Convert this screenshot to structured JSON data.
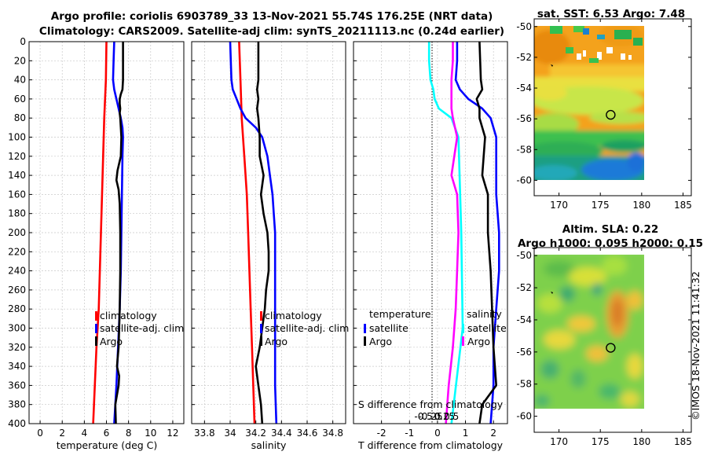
{
  "figure": {
    "title_line1": "Argo profile: coriolis 6903789_33 13-Nov-2021 55.74S 176.25E (NRT data)",
    "title_line2": "Climatology: CARS2009. Satellite-adj clim: synTS_20211113.nc (0.24d earlier)",
    "credit": "©IMOS 18-Nov-2021 11:41:32"
  },
  "colors": {
    "climatology": "#ff0000",
    "satellite_adj": "#0000ff",
    "argo": "#000000",
    "t_satellite": "#0000ff",
    "s_satellite": "#00ffff",
    "s_argo": "#ff00ff",
    "t_argo": "#000000"
  },
  "chart_data": [
    {
      "id": "temperature",
      "type": "line",
      "xlabel": "temperature (deg C)",
      "ylabel": "",
      "xlim": [
        -1,
        13
      ],
      "ylim": [
        400,
        0
      ],
      "xticks": [
        0,
        2,
        4,
        6,
        8,
        10,
        12
      ],
      "xtick_labels": [
        "0",
        "2",
        "4",
        "6",
        "8",
        "10",
        "12"
      ],
      "yticks": [
        0,
        20,
        40,
        60,
        80,
        100,
        120,
        140,
        160,
        180,
        200,
        220,
        240,
        260,
        280,
        300,
        320,
        340,
        360,
        380,
        400
      ],
      "ytick_labels": [
        "0",
        "20",
        "40",
        "60",
        "80",
        "100",
        "120",
        "140",
        "160",
        "180",
        "200",
        "220",
        "240",
        "260",
        "280",
        "300",
        "320",
        "340",
        "360",
        "380",
        "400"
      ],
      "grid": true,
      "legend": {
        "position": "lower-right",
        "entries": [
          "climatology",
          "satellite-adj. clim",
          "Argo"
        ]
      },
      "series": [
        {
          "name": "climatology",
          "color": "climatology",
          "depth": [
            0,
            40,
            80,
            120,
            160,
            200,
            240,
            280,
            320,
            360,
            400
          ],
          "values": [
            6.0,
            5.95,
            5.8,
            5.7,
            5.6,
            5.5,
            5.4,
            5.3,
            5.1,
            4.95,
            4.8
          ]
        },
        {
          "name": "satellite-adj. clim",
          "color": "satellite_adj",
          "depth": [
            0,
            20,
            40,
            50,
            60,
            70,
            80,
            90,
            100,
            120,
            160,
            200,
            240,
            280,
            320,
            360,
            400
          ],
          "values": [
            6.7,
            6.65,
            6.6,
            6.7,
            6.9,
            7.1,
            7.3,
            7.45,
            7.5,
            7.45,
            7.4,
            7.35,
            7.3,
            7.2,
            7.05,
            6.9,
            6.7
          ]
        },
        {
          "name": "Argo",
          "color": "argo",
          "depth": [
            0,
            40,
            50,
            55,
            60,
            65,
            70,
            75,
            80,
            90,
            100,
            120,
            135,
            145,
            155,
            170,
            200,
            240,
            280,
            320,
            340,
            350,
            360,
            380,
            400
          ],
          "values": [
            7.5,
            7.5,
            7.45,
            7.3,
            7.2,
            7.2,
            7.25,
            7.2,
            7.25,
            7.3,
            7.35,
            7.3,
            7.0,
            6.9,
            7.1,
            7.2,
            7.25,
            7.25,
            7.2,
            7.1,
            6.95,
            7.15,
            7.1,
            6.8,
            6.85
          ]
        }
      ]
    },
    {
      "id": "salinity",
      "type": "line",
      "xlabel": "salinity",
      "ylabel": "",
      "xlim": [
        33.7,
        34.9
      ],
      "ylim": [
        400,
        0
      ],
      "xticks": [
        33.8,
        34.0,
        34.2,
        34.4,
        34.6,
        34.8
      ],
      "xtick_labels": [
        "33.8",
        "34",
        "34.2",
        "34.4",
        "34.6",
        "34.8"
      ],
      "grid": true,
      "legend": {
        "position": "lower-right",
        "entries": [
          "climatology",
          "satellite-adj. clim",
          "Argo"
        ]
      },
      "series": [
        {
          "name": "climatology",
          "color": "climatology",
          "depth": [
            0,
            40,
            80,
            120,
            160,
            200,
            240,
            280,
            320,
            360,
            400
          ],
          "values": [
            34.07,
            34.08,
            34.09,
            34.11,
            34.13,
            34.14,
            34.15,
            34.16,
            34.17,
            34.18,
            34.19
          ]
        },
        {
          "name": "satellite-adj. clim",
          "color": "satellite_adj",
          "depth": [
            0,
            40,
            50,
            60,
            70,
            80,
            90,
            100,
            120,
            140,
            160,
            180,
            200,
            240,
            280,
            320,
            360,
            400
          ],
          "values": [
            34.0,
            34.01,
            34.02,
            34.05,
            34.08,
            34.12,
            34.2,
            34.25,
            34.29,
            34.31,
            34.33,
            34.34,
            34.35,
            34.35,
            34.35,
            34.35,
            34.35,
            34.36
          ]
        },
        {
          "name": "Argo",
          "color": "argo",
          "depth": [
            0,
            40,
            50,
            60,
            70,
            80,
            100,
            120,
            140,
            160,
            180,
            200,
            220,
            240,
            260,
            280,
            300,
            320,
            340,
            360,
            380,
            400
          ],
          "values": [
            34.22,
            34.22,
            34.21,
            34.22,
            34.21,
            34.22,
            34.23,
            34.23,
            34.26,
            34.24,
            34.26,
            34.29,
            34.3,
            34.3,
            34.28,
            34.27,
            34.25,
            34.23,
            34.2,
            34.22,
            34.24,
            34.25
          ]
        }
      ]
    },
    {
      "id": "differences",
      "type": "line",
      "xlabel": "T difference from climatology",
      "xlabel_top": "S difference from climatology",
      "xlim": [
        -3,
        2.5
      ],
      "ylim": [
        400,
        0
      ],
      "xticks": [
        -2,
        -1,
        0,
        1,
        2
      ],
      "xtick_labels": [
        "-2",
        "-1",
        "0",
        "1",
        "2"
      ],
      "s_ticks": [
        -0.5,
        -0.25,
        0,
        0.25,
        0.5
      ],
      "s_tick_labels": [
        "-0.5",
        "-0.25",
        "0",
        "0.25",
        "0.5"
      ],
      "grid": true,
      "legend_left": {
        "heading": "temperature",
        "entries": [
          "satellite",
          "Argo"
        ]
      },
      "legend_right": {
        "heading": "salinity",
        "entries": [
          "satellite",
          "Argo"
        ]
      },
      "series": [
        {
          "name": "T satellite",
          "color": "t_satellite",
          "depth": [
            0,
            20,
            40,
            50,
            60,
            70,
            80,
            100,
            160,
            200,
            240,
            280,
            320,
            360,
            400
          ],
          "values": [
            0.7,
            0.7,
            0.65,
            0.8,
            1.1,
            1.6,
            1.9,
            2.1,
            2.1,
            2.2,
            2.2,
            2.1,
            2.0,
            2.0,
            1.9
          ]
        },
        {
          "name": "T Argo",
          "color": "t_argo",
          "depth": [
            0,
            40,
            50,
            60,
            70,
            80,
            100,
            140,
            160,
            200,
            240,
            280,
            320,
            360,
            380,
            400
          ],
          "values": [
            1.5,
            1.55,
            1.6,
            1.4,
            1.5,
            1.5,
            1.7,
            1.6,
            1.8,
            1.8,
            1.9,
            1.95,
            2.0,
            2.1,
            1.6,
            1.5
          ]
        },
        {
          "name": "S satellite",
          "color": "s_satellite",
          "depth": [
            0,
            20,
            40,
            50,
            60,
            70,
            80,
            100,
            200,
            300,
            400
          ],
          "values": [
            -0.3,
            -0.3,
            -0.25,
            -0.15,
            -0.1,
            0.05,
            0.5,
            0.75,
            0.85,
            0.9,
            0.5
          ]
        },
        {
          "name": "S Argo",
          "color": "s_argo",
          "depth": [
            0,
            20,
            40,
            60,
            70,
            80,
            100,
            140,
            160,
            200,
            240,
            280,
            300,
            320,
            360,
            400
          ],
          "values": [
            0.55,
            0.55,
            0.5,
            0.5,
            0.5,
            0.55,
            0.7,
            0.5,
            0.7,
            0.75,
            0.7,
            0.65,
            0.6,
            0.55,
            0.4,
            0.3
          ]
        }
      ]
    },
    {
      "id": "sst_map",
      "type": "heatmap",
      "title": "sat. SST: 6.53 Argo: 7.48",
      "xlim": [
        167,
        186
      ],
      "ylim": [
        -61,
        -49.5
      ],
      "xticks": [
        170,
        175,
        180,
        185
      ],
      "xtick_labels": [
        "170",
        "175",
        "180",
        "185"
      ],
      "yticks": [
        -50,
        -52,
        -54,
        -56,
        -58,
        -60
      ],
      "ytick_labels": [
        "-50",
        "-52",
        "-54",
        "-56",
        "-58",
        "-60"
      ],
      "data_extent": {
        "lon": [
          167.5,
          180
        ],
        "lat": [
          -60,
          -50
        ]
      },
      "argo_position": {
        "lon": 176.25,
        "lat": -55.74
      }
    },
    {
      "id": "sla_map",
      "type": "heatmap",
      "title_line1": "Altim. SLA: 0.22",
      "title_line2": "Argo h1000: 0.095 h2000: 0.15",
      "xlim": [
        167,
        186
      ],
      "ylim": [
        -61,
        -49.5
      ],
      "xticks": [
        170,
        175,
        180,
        185
      ],
      "xtick_labels": [
        "170",
        "175",
        "180",
        "185"
      ],
      "yticks": [
        -50,
        -52,
        -54,
        -56,
        -58,
        -60
      ],
      "ytick_labels": [
        "-50",
        "-52",
        "-54",
        "-56",
        "-58",
        "-60"
      ],
      "data_extent": {
        "lon": [
          167.5,
          180
        ],
        "lat": [
          -60,
          -50
        ]
      },
      "argo_position": {
        "lon": 176.25,
        "lat": -55.74
      }
    }
  ]
}
